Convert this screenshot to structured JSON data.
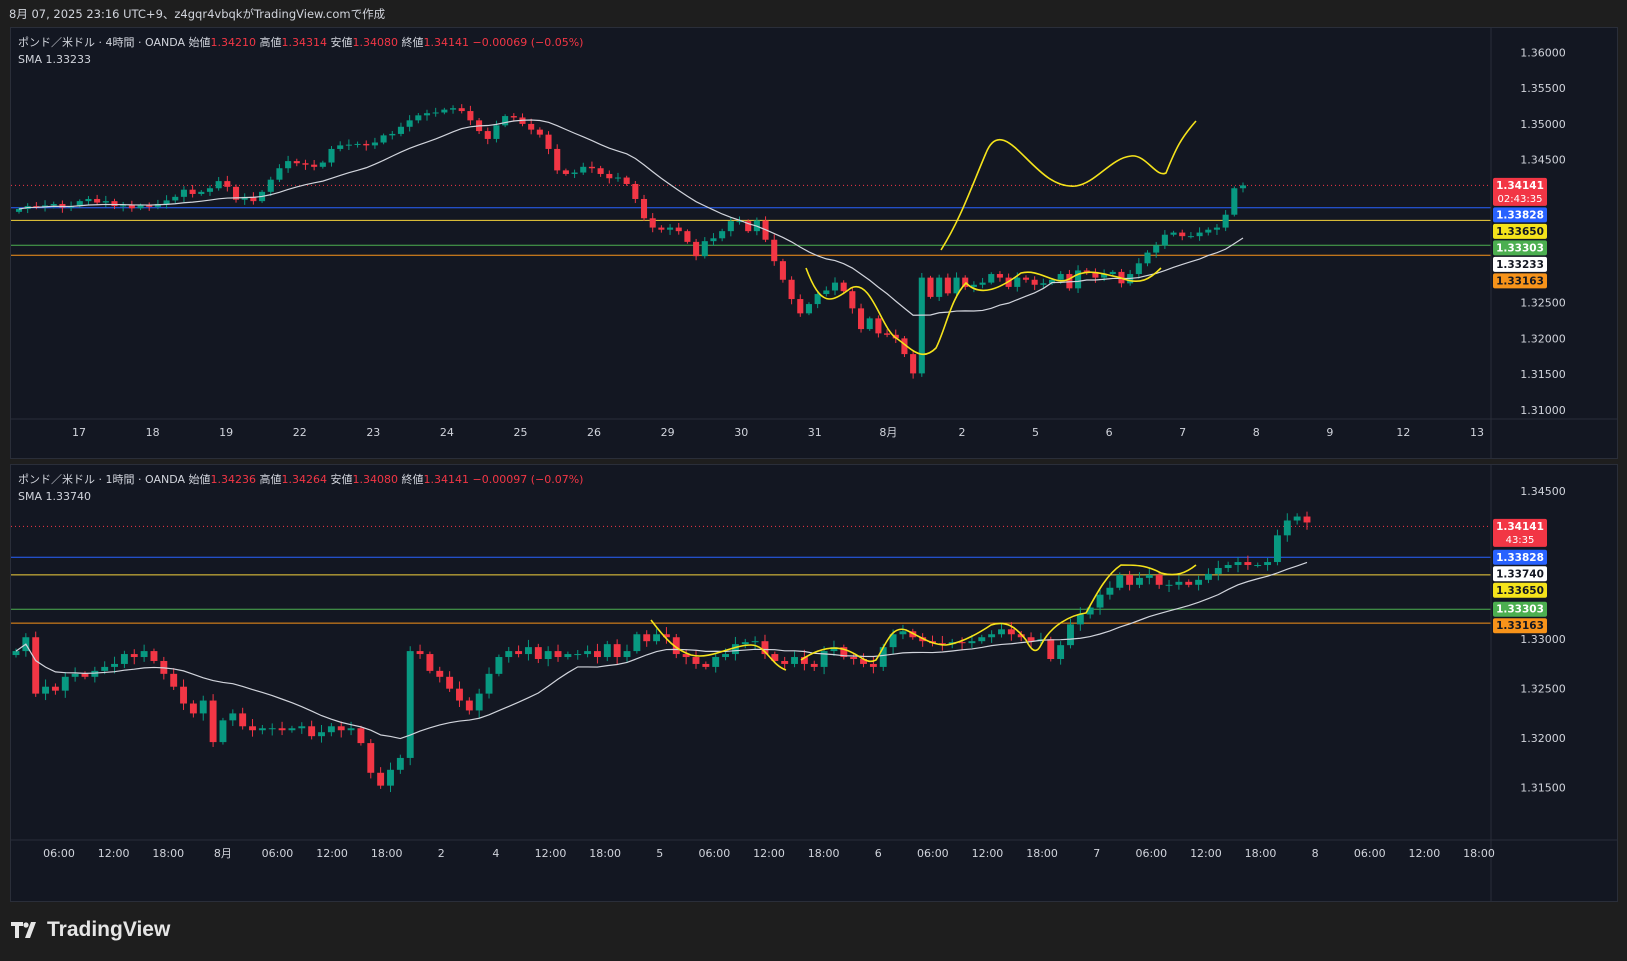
{
  "header": {
    "caption": "8月 07, 2025 23:16 UTC+9、z4gqr4vbqkがTradingView.comで作成"
  },
  "brand": {
    "name": "TradingView",
    "icon": "tradingview-logo-icon"
  },
  "colors": {
    "bg": "#131722",
    "up": "#089981",
    "down": "#f23645",
    "sma": "#d1d4dc",
    "drawing": "#f5e31b",
    "blue_line": "#2962ff",
    "yellow_line": "#f5d33c",
    "green_line": "#4caf50",
    "orange_line": "#f7931a",
    "last_price_dotted": "#f23645"
  },
  "chart_data": [
    {
      "type": "candlestick",
      "symbol": "ポンド／米ドル · 4時間 · OANDA",
      "ohlc_labels": {
        "open": "始値",
        "high": "高値",
        "low": "安値",
        "close": "終値"
      },
      "ohlc": {
        "open": "1.34210",
        "high": "1.34314",
        "low": "1.34080",
        "close": "1.34141",
        "change": "−0.00069 (−0.05%)"
      },
      "indicator": {
        "name": "SMA",
        "value": "1.33233"
      },
      "y_ticks": [
        "1.36000",
        "1.35500",
        "1.35000",
        "1.34500",
        "1.32500",
        "1.32000",
        "1.31500",
        "1.31000"
      ],
      "y_tick_values": [
        1.36,
        1.355,
        1.35,
        1.345,
        1.325,
        1.32,
        1.315,
        1.31
      ],
      "ylim": [
        1.3097,
        1.3623
      ],
      "x_ticks": [
        "17",
        "18",
        "19",
        "22",
        "23",
        "24",
        "25",
        "26",
        "29",
        "30",
        "31",
        "8月",
        "2",
        "5",
        "6",
        "7",
        "8",
        "9",
        "12",
        "13"
      ],
      "x_tick_index": [
        0,
        1,
        2,
        3,
        4,
        5,
        6,
        7,
        8,
        9,
        10,
        11,
        12,
        13,
        14,
        15,
        16,
        17,
        18,
        19
      ],
      "price_badges": [
        {
          "text": "1.34141",
          "sub": "02:43:35",
          "value": 1.34141,
          "bg": "#f23645",
          "fg": "#ffffff"
        },
        {
          "text": "1.33828",
          "value": 1.33828,
          "bg": "#2962ff",
          "fg": "#ffffff"
        },
        {
          "text": "1.33650",
          "value": 1.3365,
          "bg": "#f5e31b",
          "fg": "#131722"
        },
        {
          "text": "1.33303",
          "value": 1.33303,
          "bg": "#4caf50",
          "fg": "#ffffff"
        },
        {
          "text": "1.33233",
          "value": 1.33233,
          "bg": "#ffffff",
          "fg": "#131722"
        },
        {
          "text": "1.33163",
          "value": 1.33163,
          "bg": "#f7931a",
          "fg": "#131722"
        }
      ],
      "hlines": [
        {
          "value": 1.33828,
          "color": "#2962ff"
        },
        {
          "value": 1.3365,
          "color": "#f5d33c"
        },
        {
          "value": 1.33303,
          "color": "#4caf50"
        },
        {
          "value": 1.33163,
          "color": "#f7931a"
        }
      ],
      "last_price": 1.34141,
      "closes": [
        1.3381,
        1.3385,
        1.3384,
        1.3386,
        1.3388,
        1.3383,
        1.3385,
        1.3392,
        1.3395,
        1.339,
        1.3392,
        1.3385,
        1.3386,
        1.3382,
        1.3386,
        1.3384,
        1.3388,
        1.3393,
        1.3398,
        1.3408,
        1.3402,
        1.3405,
        1.341,
        1.342,
        1.3412,
        1.3394,
        1.3398,
        1.3392,
        1.3405,
        1.3422,
        1.3438,
        1.3448,
        1.3445,
        1.3443,
        1.344,
        1.3446,
        1.3465,
        1.347,
        1.3471,
        1.3472,
        1.347,
        1.3474,
        1.3484,
        1.3486,
        1.3496,
        1.3505,
        1.3512,
        1.3515,
        1.3516,
        1.352,
        1.3522,
        1.3518,
        1.3505,
        1.349,
        1.3479,
        1.3498,
        1.3511,
        1.3509,
        1.35,
        1.3492,
        1.3485,
        1.3465,
        1.3435,
        1.343,
        1.3432,
        1.344,
        1.3438,
        1.343,
        1.3424,
        1.3425,
        1.3416,
        1.3395,
        1.3368,
        1.3355,
        1.3352,
        1.3355,
        1.335,
        1.3335,
        1.3315,
        1.3336,
        1.334,
        1.335,
        1.3364,
        1.3364,
        1.335,
        1.3365,
        1.3338,
        1.3308,
        1.3282,
        1.3255,
        1.3235,
        1.3248,
        1.3262,
        1.3267,
        1.3278,
        1.3266,
        1.3242,
        1.3213,
        1.3228,
        1.3207,
        1.3205,
        1.32,
        1.3178,
        1.3151,
        1.3285,
        1.3258,
        1.3285,
        1.3263,
        1.3285,
        1.3272,
        1.3275,
        1.3278,
        1.329,
        1.3285,
        1.3272,
        1.3285,
        1.3282,
        1.3275,
        1.3277,
        1.3282,
        1.329,
        1.327,
        1.3295,
        1.3293,
        1.3285,
        1.329,
        1.3293,
        1.3277,
        1.329,
        1.3305,
        1.332,
        1.333,
        1.3345,
        1.3348,
        1.3343,
        1.3343,
        1.3348,
        1.3352,
        1.3355,
        1.3373,
        1.341,
        1.3414
      ],
      "sma_values": "SMA line shown"
    },
    {
      "type": "candlestick",
      "symbol": "ポンド／米ドル · 1時間 · OANDA",
      "ohlc_labels": {
        "open": "始値",
        "high": "高値",
        "low": "安値",
        "close": "終値"
      },
      "ohlc": {
        "open": "1.34236",
        "high": "1.34264",
        "low": "1.34080",
        "close": "1.34141",
        "change": "−0.00097 (−0.07%)"
      },
      "indicator": {
        "name": "SMA",
        "value": "1.33740"
      },
      "y_ticks": [
        "1.34500",
        "1.33000",
        "1.32500",
        "1.32000",
        "1.31500"
      ],
      "y_tick_values": [
        1.345,
        1.33,
        1.325,
        1.32,
        1.315
      ],
      "ylim": [
        1.3092,
        1.3468
      ],
      "x_ticks": [
        "06:00",
        "12:00",
        "18:00",
        "8月",
        "06:00",
        "12:00",
        "18:00",
        "2",
        "4",
        "12:00",
        "18:00",
        "5",
        "06:00",
        "12:00",
        "18:00",
        "6",
        "06:00",
        "12:00",
        "18:00",
        "7",
        "06:00",
        "12:00",
        "18:00",
        "8",
        "06:00",
        "12:00",
        "18:00"
      ],
      "x_tick_index": [
        0,
        1,
        2,
        3,
        4,
        5,
        6,
        7,
        8,
        9,
        10,
        11,
        12,
        13,
        14,
        15,
        16,
        17,
        18,
        19,
        20,
        21,
        22,
        23,
        24,
        25,
        26
      ],
      "price_badges": [
        {
          "text": "1.34141",
          "sub": "43:35",
          "value": 1.34141,
          "bg": "#f23645",
          "fg": "#ffffff"
        },
        {
          "text": "1.33828",
          "value": 1.33828,
          "bg": "#2962ff",
          "fg": "#ffffff"
        },
        {
          "text": "1.33740",
          "value": 1.3374,
          "bg": "#ffffff",
          "fg": "#131722"
        },
        {
          "text": "1.33650",
          "value": 1.3365,
          "bg": "#f5e31b",
          "fg": "#131722"
        },
        {
          "text": "1.33303",
          "value": 1.33303,
          "bg": "#4caf50",
          "fg": "#ffffff"
        },
        {
          "text": "1.33163",
          "value": 1.33163,
          "bg": "#f7931a",
          "fg": "#131722"
        }
      ],
      "hlines": [
        {
          "value": 1.33828,
          "color": "#2962ff"
        },
        {
          "value": 1.3365,
          "color": "#f5d33c"
        },
        {
          "value": 1.33303,
          "color": "#4caf50"
        },
        {
          "value": 1.33163,
          "color": "#f7931a"
        }
      ],
      "last_price": 1.34141,
      "closes": [
        1.3288,
        1.3302,
        1.3245,
        1.3252,
        1.3248,
        1.3262,
        1.3265,
        1.3262,
        1.3268,
        1.3272,
        1.3275,
        1.3285,
        1.3282,
        1.3288,
        1.3278,
        1.3265,
        1.3252,
        1.3235,
        1.3225,
        1.3238,
        1.3196,
        1.3218,
        1.3225,
        1.3212,
        1.3208,
        1.321,
        1.321,
        1.3208,
        1.321,
        1.3212,
        1.3202,
        1.3206,
        1.3212,
        1.3208,
        1.321,
        1.3195,
        1.3165,
        1.3152,
        1.3168,
        1.318,
        1.3288,
        1.3285,
        1.3268,
        1.3262,
        1.325,
        1.3238,
        1.3228,
        1.3245,
        1.3265,
        1.3282,
        1.3288,
        1.3285,
        1.3292,
        1.328,
        1.3288,
        1.3282,
        1.3285,
        1.3285,
        1.3288,
        1.3282,
        1.3295,
        1.3282,
        1.3288,
        1.3305,
        1.3298,
        1.3305,
        1.3302,
        1.3285,
        1.3282,
        1.3275,
        1.3272,
        1.3282,
        1.3285,
        1.3295,
        1.3297,
        1.3298,
        1.3285,
        1.3278,
        1.3275,
        1.3282,
        1.3275,
        1.3272,
        1.3288,
        1.3292,
        1.3282,
        1.328,
        1.3275,
        1.3272,
        1.3292,
        1.3305,
        1.3308,
        1.3302,
        1.3298,
        1.3296,
        1.3295,
        1.3297,
        1.3296,
        1.3298,
        1.3302,
        1.3305,
        1.331,
        1.3305,
        1.3302,
        1.3298,
        1.33,
        1.328,
        1.3294,
        1.3315,
        1.3325,
        1.3332,
        1.3345,
        1.3352,
        1.3365,
        1.3355,
        1.3362,
        1.3365,
        1.3355,
        1.3355,
        1.3358,
        1.3355,
        1.336,
        1.3366,
        1.3372,
        1.3375,
        1.3378,
        1.3375,
        1.3375,
        1.3378,
        1.3405,
        1.342,
        1.3424,
        1.3418
      ]
    }
  ]
}
